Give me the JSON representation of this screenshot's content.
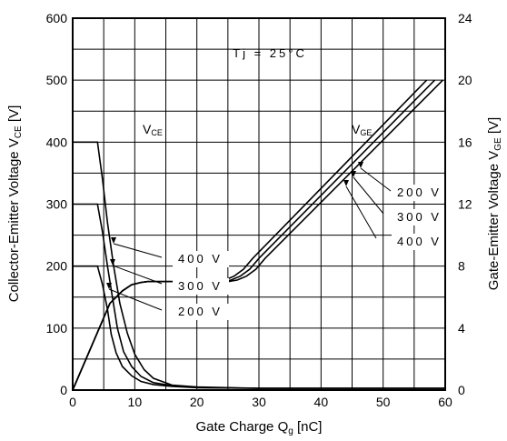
{
  "chart_data": {
    "type": "line",
    "xlabel": "Gate Charge Q",
    "xlabel_sub": "g",
    "xlabel_unit": " [nC]",
    "ylabel_left": "Collector-Emitter Voltage V",
    "ylabel_left_sub": "CE",
    "ylabel_left_unit": " [V]",
    "ylabel_right": "Gate-Emitter Voltage V",
    "ylabel_right_sub": "GE",
    "ylabel_right_unit": " [V]",
    "xlim": [
      0,
      60
    ],
    "ylim_left": [
      0,
      600
    ],
    "ylim_right": [
      0,
      24
    ],
    "x_ticks": [
      "0",
      "10",
      "20",
      "30",
      "40",
      "50",
      "60"
    ],
    "y_left_ticks": [
      "0",
      "100",
      "200",
      "300",
      "400",
      "500",
      "600"
    ],
    "y_right_ticks": [
      "0",
      "4",
      "8",
      "12",
      "16",
      "20",
      "24"
    ],
    "grid": true,
    "annotation": "Tj = 25°C",
    "label_vce": "V",
    "label_vce_sub": "CE",
    "label_vge": "V",
    "label_vge_sub": "GE",
    "series": [
      {
        "name": "200 V",
        "axis": "left",
        "group": "VCE",
        "x": [
          0,
          4,
          4.8,
          5.6,
          6.2,
          7.0,
          8.0,
          9.5,
          11,
          13,
          16,
          20,
          30,
          40,
          50,
          60
        ],
        "y": [
          200,
          200,
          170,
          130,
          90,
          60,
          38,
          23,
          14,
          9,
          6,
          4,
          3,
          3,
          3,
          3
        ]
      },
      {
        "name": "300 V",
        "axis": "left",
        "group": "VCE",
        "x": [
          0,
          4,
          4.8,
          5.6,
          6.4,
          7.2,
          8.2,
          9.5,
          11,
          13,
          16,
          20,
          30,
          40,
          50,
          60
        ],
        "y": [
          300,
          300,
          255,
          200,
          150,
          100,
          62,
          38,
          22,
          12,
          7,
          4,
          3,
          3,
          3,
          3
        ]
      },
      {
        "name": "400 V",
        "axis": "left",
        "group": "VCE",
        "x": [
          0,
          4,
          4.8,
          5.6,
          6.6,
          7.6,
          8.8,
          10,
          11.5,
          13,
          16,
          20,
          30,
          40,
          50,
          60
        ],
        "y": [
          400,
          400,
          340,
          270,
          200,
          140,
          92,
          58,
          33,
          19,
          8,
          5,
          3,
          3,
          3,
          3
        ]
      },
      {
        "name": "200 V",
        "axis": "right",
        "group": "VGE",
        "x": [
          0,
          6,
          8,
          9.5,
          11,
          12,
          23,
          24.5,
          26,
          27.5,
          29,
          57
        ],
        "y": [
          0,
          5.6,
          6.4,
          6.8,
          6.95,
          7.0,
          7.0,
          7.1,
          7.35,
          7.8,
          8.5,
          20.0
        ]
      },
      {
        "name": "300 V",
        "axis": "right",
        "group": "VGE",
        "x": [
          0,
          6,
          8,
          9.5,
          11,
          12,
          24,
          25.5,
          27,
          28.5,
          30,
          58.3
        ],
        "y": [
          0,
          5.6,
          6.4,
          6.8,
          6.95,
          7.0,
          7.0,
          7.1,
          7.35,
          7.8,
          8.5,
          20.0
        ]
      },
      {
        "name": "400 V",
        "axis": "right",
        "group": "VGE",
        "x": [
          0,
          6,
          8,
          9.5,
          11,
          12,
          25,
          26.5,
          28,
          29.5,
          31,
          59.6
        ],
        "y": [
          0,
          5.6,
          6.4,
          6.8,
          6.95,
          7.0,
          7.0,
          7.1,
          7.35,
          7.8,
          8.5,
          20.0
        ]
      }
    ],
    "callouts_vge": [
      "200 V",
      "300 V",
      "400 V"
    ],
    "callouts_vce": [
      "400 V",
      "300 V",
      "200 V"
    ]
  }
}
